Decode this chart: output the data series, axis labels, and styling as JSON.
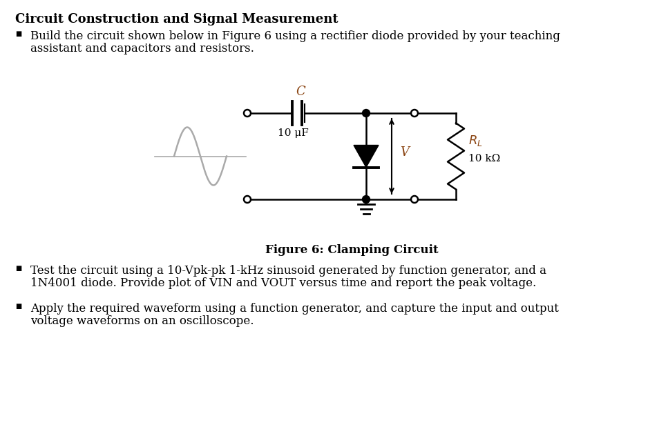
{
  "title": "Circuit Construction and Signal Measurement",
  "bullet1_line1": "Build the circuit shown below in Figure 6 using a rectifier diode provided by your teaching",
  "bullet1_line2": "assistant and capacitors and resistors.",
  "bullet2_line1": "Test the circuit using a 10-Vpk-pk 1-kHz sinusoid generated by function generator, and a",
  "bullet2_line2": "1N4001 diode. Provide plot of VIN and VOUT versus time and report the peak voltage.",
  "bullet3_line1": "Apply the required waveform using a function generator, and capture the input and output",
  "bullet3_line2": "voltage waveforms on an oscilloscope.",
  "figure_caption": "Figure 6: Clamping Circuit",
  "cap_label": "C",
  "cap_value": "10 μF",
  "res_value": "10 kΩ",
  "voltage_label": "V",
  "bg_color": "#ffffff",
  "text_color": "#000000",
  "circuit_color": "#000000",
  "label_color": "#8B4513",
  "sine_color": "#aaaaaa",
  "title_fontsize": 13,
  "body_fontsize": 12,
  "label_italic_fontsize": 12
}
